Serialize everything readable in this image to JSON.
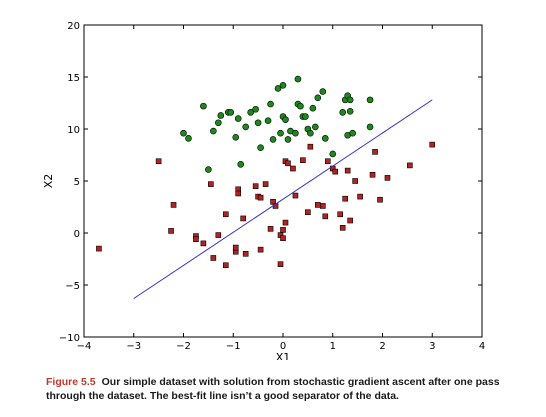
{
  "chart_data": {
    "type": "scatter",
    "xlabel": "X1",
    "ylabel": "X2",
    "xlim": [
      -4,
      4
    ],
    "ylim": [
      -10,
      20
    ],
    "xticks": [
      "−4",
      "−3",
      "−2",
      "−1",
      "0",
      "1",
      "2",
      "3",
      "4"
    ],
    "yticks": [
      "−10",
      "−5",
      "0",
      "5",
      "10",
      "15",
      "20"
    ],
    "grid": false,
    "colors": {
      "class1": "#1a8a1a",
      "class0": "#b22222",
      "line": "#3333cc"
    },
    "series": [
      {
        "marker": "circle",
        "color": "#1a8a1a",
        "points": [
          [
            -2.0,
            9.6
          ],
          [
            -1.9,
            9.1
          ],
          [
            -1.6,
            12.2
          ],
          [
            -1.5,
            6.1
          ],
          [
            -1.4,
            9.8
          ],
          [
            -1.3,
            10.6
          ],
          [
            -1.25,
            11.3
          ],
          [
            -1.1,
            11.6
          ],
          [
            -1.05,
            11.6
          ],
          [
            -0.95,
            9.2
          ],
          [
            -0.9,
            11.0
          ],
          [
            -0.85,
            6.6
          ],
          [
            -0.75,
            10.2
          ],
          [
            -0.65,
            11.6
          ],
          [
            -0.55,
            11.9
          ],
          [
            -0.5,
            10.6
          ],
          [
            -0.45,
            8.2
          ],
          [
            -0.3,
            10.8
          ],
          [
            -0.25,
            12.4
          ],
          [
            -0.2,
            9.0
          ],
          [
            -0.1,
            13.9
          ],
          [
            -0.05,
            9.6
          ],
          [
            0.0,
            11.2
          ],
          [
            0.0,
            14.2
          ],
          [
            0.05,
            10.9
          ],
          [
            0.1,
            9.0
          ],
          [
            0.15,
            9.8
          ],
          [
            0.25,
            9.6
          ],
          [
            0.3,
            14.8
          ],
          [
            0.3,
            12.4
          ],
          [
            0.35,
            12.2
          ],
          [
            0.4,
            11.2
          ],
          [
            0.45,
            11.2
          ],
          [
            0.5,
            10.0
          ],
          [
            0.55,
            9.6
          ],
          [
            0.6,
            12.0
          ],
          [
            0.65,
            10.2
          ],
          [
            0.7,
            13.0
          ],
          [
            0.8,
            13.6
          ],
          [
            0.85,
            9.1
          ],
          [
            1.0,
            7.6
          ],
          [
            1.2,
            11.6
          ],
          [
            1.25,
            12.8
          ],
          [
            1.3,
            9.4
          ],
          [
            1.35,
            11.7
          ],
          [
            1.3,
            13.2
          ],
          [
            1.35,
            12.8
          ],
          [
            1.4,
            9.6
          ],
          [
            1.75,
            12.8
          ],
          [
            1.75,
            10.2
          ]
        ]
      },
      {
        "marker": "square",
        "color": "#b22222",
        "points": [
          [
            -3.7,
            -1.5
          ],
          [
            -2.5,
            6.9
          ],
          [
            -2.2,
            2.7
          ],
          [
            -2.25,
            0.2
          ],
          [
            -1.75,
            -0.3
          ],
          [
            -1.75,
            -0.6
          ],
          [
            -1.6,
            -1.0
          ],
          [
            -1.4,
            -2.4
          ],
          [
            -1.45,
            4.7
          ],
          [
            -1.3,
            -0.2
          ],
          [
            -1.15,
            1.8
          ],
          [
            -1.15,
            -3.1
          ],
          [
            -0.95,
            -1.8
          ],
          [
            -0.95,
            -1.4
          ],
          [
            -0.9,
            4.2
          ],
          [
            -0.9,
            3.8
          ],
          [
            -0.8,
            1.4
          ],
          [
            -0.75,
            -2.0
          ],
          [
            -0.55,
            4.5
          ],
          [
            -0.5,
            3.5
          ],
          [
            -0.45,
            3.4
          ],
          [
            -0.45,
            -1.6
          ],
          [
            -0.35,
            4.7
          ],
          [
            -0.25,
            0.4
          ],
          [
            -0.2,
            3.0
          ],
          [
            -0.15,
            2.6
          ],
          [
            -0.05,
            -0.2
          ],
          [
            -0.05,
            -3.0
          ],
          [
            0.0,
            -0.5
          ],
          [
            0.0,
            0.3
          ],
          [
            0.05,
            1.0
          ],
          [
            0.05,
            6.9
          ],
          [
            0.1,
            6.7
          ],
          [
            0.2,
            6.2
          ],
          [
            0.25,
            3.6
          ],
          [
            0.4,
            7.0
          ],
          [
            0.5,
            2.0
          ],
          [
            0.55,
            8.3
          ],
          [
            0.7,
            2.7
          ],
          [
            0.8,
            2.6
          ],
          [
            0.85,
            1.6
          ],
          [
            0.9,
            6.9
          ],
          [
            1.0,
            6.2
          ],
          [
            1.05,
            5.9
          ],
          [
            1.15,
            1.8
          ],
          [
            1.2,
            0.5
          ],
          [
            1.25,
            3.3
          ],
          [
            1.3,
            6.0
          ],
          [
            1.35,
            1.2
          ],
          [
            1.45,
            5.0
          ],
          [
            1.55,
            3.5
          ],
          [
            1.8,
            5.6
          ],
          [
            1.85,
            7.8
          ],
          [
            1.95,
            3.2
          ],
          [
            2.1,
            5.3
          ],
          [
            2.55,
            6.5
          ],
          [
            3.0,
            8.5
          ]
        ]
      }
    ],
    "line": {
      "x": [
        -3.0,
        3.0
      ],
      "y": [
        -6.3,
        12.8
      ],
      "color": "#3333cc"
    }
  },
  "caption": {
    "label": "Figure 5.5",
    "text": "Our simple dataset with solution from stochastic gradient ascent after one pass through the dataset. The best-fit line isn’t a good separator of the data."
  }
}
